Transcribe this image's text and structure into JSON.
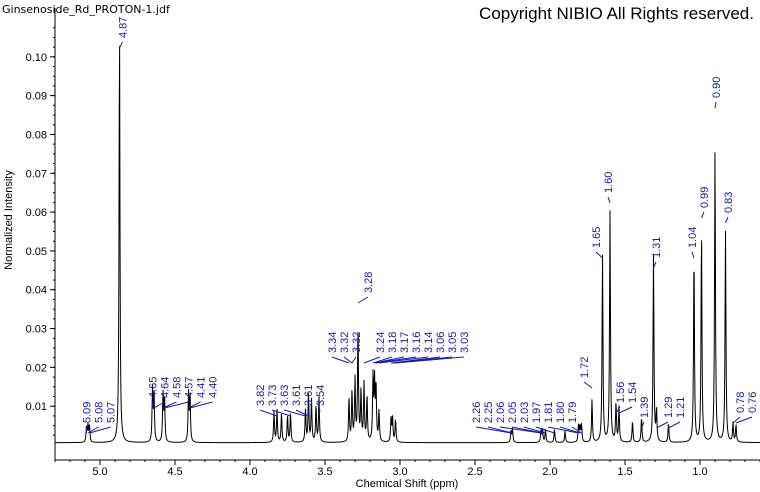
{
  "header": {
    "file_title": "Ginsenoside_Rd_PROTON-1.jdf",
    "copyright": "Copyright NIBIO All Rights reserved."
  },
  "chart_data": {
    "type": "line",
    "title": "",
    "xlabel": "Chemical Shift (ppm)",
    "ylabel": "Normalized Intensity",
    "xlim": [
      5.3,
      0.6
    ],
    "ylim": [
      0,
      0.11
    ],
    "x_reversed": true,
    "x_ticks": [
      "5.0",
      "4.5",
      "4.0",
      "3.5",
      "3.0",
      "2.5",
      "2.0",
      "1.5",
      "1.0"
    ],
    "y_ticks": [
      "0.01",
      "0.02",
      "0.03",
      "0.04",
      "0.05",
      "0.06",
      "0.07",
      "0.08",
      "0.09",
      "0.10"
    ],
    "line_color": "#000000",
    "label_color": "#1a1aa0",
    "grid": false,
    "peaks": [
      {
        "ppm": 5.09,
        "intensity": 0.004
      },
      {
        "ppm": 5.08,
        "intensity": 0.0045
      },
      {
        "ppm": 5.07,
        "intensity": 0.004
      },
      {
        "ppm": 4.87,
        "intensity": 0.108
      },
      {
        "ppm": 4.65,
        "intensity": 0.0135
      },
      {
        "ppm": 4.64,
        "intensity": 0.0125
      },
      {
        "ppm": 4.58,
        "intensity": 0.0125
      },
      {
        "ppm": 4.57,
        "intensity": 0.0115
      },
      {
        "ppm": 4.41,
        "intensity": 0.0125
      },
      {
        "ppm": 4.4,
        "intensity": 0.012
      },
      {
        "ppm": 3.84,
        "intensity": 0.008
      },
      {
        "ppm": 3.82,
        "intensity": 0.0085
      },
      {
        "ppm": 3.79,
        "intensity": 0.0075
      },
      {
        "ppm": 3.75,
        "intensity": 0.007
      },
      {
        "ppm": 3.73,
        "intensity": 0.0075
      },
      {
        "ppm": 3.63,
        "intensity": 0.009
      },
      {
        "ppm": 3.61,
        "intensity": 0.0125
      },
      {
        "ppm": 3.59,
        "intensity": 0.011
      },
      {
        "ppm": 3.56,
        "intensity": 0.0095
      },
      {
        "ppm": 3.54,
        "intensity": 0.0115
      },
      {
        "ppm": 3.34,
        "intensity": 0.0115
      },
      {
        "ppm": 3.32,
        "intensity": 0.013
      },
      {
        "ppm": 3.3,
        "intensity": 0.016
      },
      {
        "ppm": 3.28,
        "intensity": 0.0295
      },
      {
        "ppm": 3.26,
        "intensity": 0.013
      },
      {
        "ppm": 3.24,
        "intensity": 0.015
      },
      {
        "ppm": 3.22,
        "intensity": 0.012
      },
      {
        "ppm": 3.18,
        "intensity": 0.0165
      },
      {
        "ppm": 3.17,
        "intensity": 0.0155
      },
      {
        "ppm": 3.16,
        "intensity": 0.0145
      },
      {
        "ppm": 3.14,
        "intensity": 0.008
      },
      {
        "ppm": 3.06,
        "intensity": 0.006
      },
      {
        "ppm": 3.05,
        "intensity": 0.0065
      },
      {
        "ppm": 3.03,
        "intensity": 0.006
      },
      {
        "ppm": 2.26,
        "intensity": 0.003
      },
      {
        "ppm": 2.25,
        "intensity": 0.0035
      },
      {
        "ppm": 2.06,
        "intensity": 0.003
      },
      {
        "ppm": 2.05,
        "intensity": 0.0035
      },
      {
        "ppm": 2.03,
        "intensity": 0.0035
      },
      {
        "ppm": 1.97,
        "intensity": 0.0035
      },
      {
        "ppm": 1.9,
        "intensity": 0.003
      },
      {
        "ppm": 1.81,
        "intensity": 0.0045
      },
      {
        "ppm": 1.8,
        "intensity": 0.004
      },
      {
        "ppm": 1.79,
        "intensity": 0.0045
      },
      {
        "ppm": 1.72,
        "intensity": 0.011
      },
      {
        "ppm": 1.65,
        "intensity": 0.0485
      },
      {
        "ppm": 1.6,
        "intensity": 0.0595
      },
      {
        "ppm": 1.56,
        "intensity": 0.01
      },
      {
        "ppm": 1.54,
        "intensity": 0.009
      },
      {
        "ppm": 1.45,
        "intensity": 0.0055
      },
      {
        "ppm": 1.39,
        "intensity": 0.0065
      },
      {
        "ppm": 1.31,
        "intensity": 0.0485
      },
      {
        "ppm": 1.29,
        "intensity": 0.008
      },
      {
        "ppm": 1.21,
        "intensity": 0.005
      },
      {
        "ppm": 1.04,
        "intensity": 0.0495
      },
      {
        "ppm": 0.99,
        "intensity": 0.0555
      },
      {
        "ppm": 0.9,
        "intensity": 0.075
      },
      {
        "ppm": 0.83,
        "intensity": 0.0545
      },
      {
        "ppm": 0.78,
        "intensity": 0.005
      },
      {
        "ppm": 0.76,
        "intensity": 0.0045
      }
    ],
    "peak_labels": [
      "5.09",
      "5.08",
      "5.07",
      "4.87",
      "4.65",
      "4.64",
      "4.58",
      "4.57",
      "4.41",
      "4.40",
      "3.82",
      "3.73",
      "3.63",
      "3.61",
      "3.61",
      "3.54",
      "3.34",
      "3.32",
      "3.32",
      "3.28",
      "3.24",
      "3.18",
      "3.17",
      "3.16",
      "3.14",
      "3.06",
      "3.05",
      "3.03",
      "2.26",
      "2.25",
      "2.06",
      "2.05",
      "2.03",
      "1.97",
      "1.81",
      "1.80",
      "1.79",
      "1.72",
      "1.65",
      "1.60",
      "1.56",
      "1.54",
      "1.39",
      "1.31",
      "1.29",
      "1.21",
      "1.04",
      "0.99",
      "0.90",
      "0.83",
      "0.78",
      "0.76"
    ]
  }
}
